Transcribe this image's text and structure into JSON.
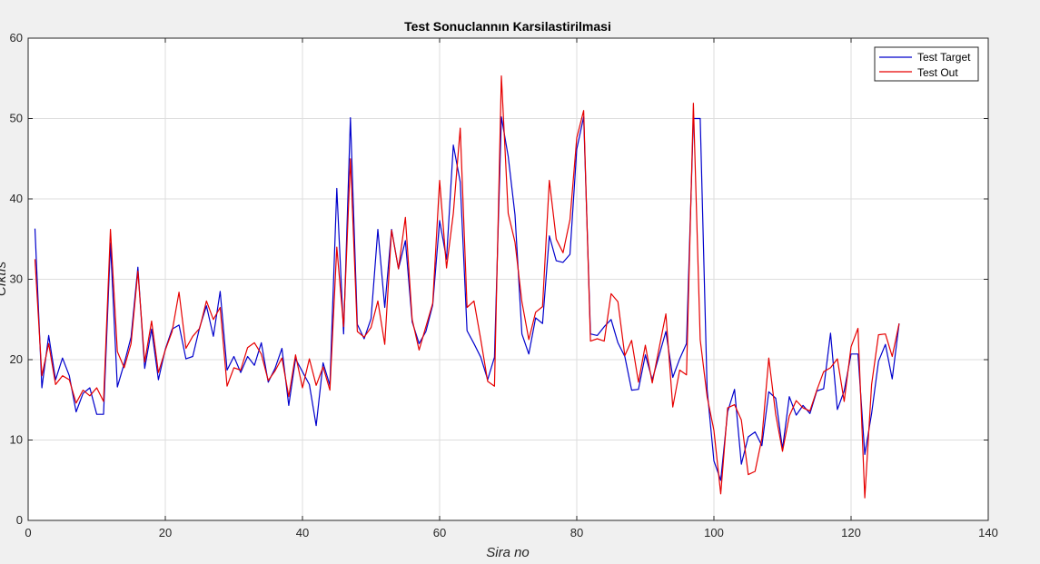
{
  "chart_data": {
    "type": "line",
    "title": "Test Sonuclannın Karsilastirilmasi",
    "xlabel": "Sira no",
    "ylabel": "Cıktıs",
    "xlim": [
      0,
      140
    ],
    "ylim": [
      0,
      60
    ],
    "xticks": [
      0,
      20,
      40,
      60,
      80,
      100,
      120,
      140
    ],
    "yticks": [
      0,
      10,
      20,
      30,
      40,
      50,
      60
    ],
    "grid": true,
    "legend_position": "top-right",
    "series": [
      {
        "name": "Test Target",
        "color": "#0000cc",
        "x": [
          1,
          2,
          3,
          4,
          5,
          6,
          7,
          8,
          9,
          10,
          11,
          12,
          13,
          14,
          15,
          16,
          17,
          18,
          19,
          20,
          21,
          22,
          23,
          24,
          25,
          26,
          27,
          28,
          29,
          30,
          31,
          32,
          33,
          34,
          35,
          36,
          37,
          38,
          39,
          40,
          41,
          42,
          43,
          44,
          45,
          46,
          47,
          48,
          49,
          50,
          51,
          52,
          53,
          54,
          55,
          56,
          57,
          58,
          59,
          60,
          61,
          62,
          63,
          64,
          65,
          66,
          67,
          68,
          69,
          70,
          71,
          72,
          73,
          74,
          75,
          76,
          77,
          78,
          79,
          80,
          81,
          82,
          83,
          84,
          85,
          86,
          87,
          88,
          89,
          90,
          91,
          92,
          93,
          94,
          95,
          96,
          97,
          98,
          99,
          100,
          101,
          102,
          103,
          104,
          105,
          106,
          107,
          108,
          109,
          110,
          111,
          112,
          113,
          114,
          115,
          116,
          117,
          118,
          119,
          120,
          121,
          122,
          123,
          124,
          125,
          126,
          127
        ],
        "values": [
          36.3,
          16.5,
          23.0,
          17.5,
          20.2,
          18.0,
          13.5,
          15.8,
          16.5,
          13.2,
          13.2,
          34.5,
          16.6,
          19.5,
          22.8,
          31.5,
          18.9,
          23.8,
          17.5,
          21.3,
          23.8,
          24.3,
          20.1,
          20.4,
          24.0,
          26.7,
          22.9,
          28.5,
          18.7,
          20.4,
          18.4,
          20.4,
          19.3,
          22.1,
          17.2,
          18.9,
          21.4,
          14.3,
          20.1,
          18.5,
          16.9,
          11.8,
          19.6,
          16.8,
          41.3,
          23.2,
          50.1,
          24.4,
          22.6,
          25.1,
          36.2,
          26.5,
          36.2,
          31.3,
          34.8,
          24.7,
          22.0,
          23.5,
          26.8,
          37.3,
          32.5,
          46.7,
          42.1,
          23.6,
          22.0,
          20.3,
          17.5,
          20.3,
          50.2,
          45.3,
          38.0,
          23.2,
          20.7,
          25.2,
          24.5,
          35.4,
          32.3,
          32.1,
          33.1,
          46.2,
          50.2,
          23.2,
          23.0,
          24.1,
          25.0,
          22.1,
          20.4,
          16.2,
          16.3,
          20.6,
          17.5,
          20.5,
          23.5,
          17.8,
          20.1,
          22.0,
          50.0,
          50.0,
          16.3,
          7.4,
          5.0,
          13.5,
          16.3,
          7.0,
          10.4,
          11.0,
          9.3,
          16.0,
          15.2,
          8.9,
          15.4,
          13.1,
          14.3,
          13.3,
          16.1,
          16.4,
          23.3,
          13.8,
          16.1,
          20.7,
          20.7,
          8.2,
          13.3,
          19.8,
          21.9,
          17.6,
          24.5
        ]
      },
      {
        "name": "Test Out",
        "color": "#e60000",
        "x": [
          1,
          2,
          3,
          4,
          5,
          6,
          7,
          8,
          9,
          10,
          11,
          12,
          13,
          14,
          15,
          16,
          17,
          18,
          19,
          20,
          21,
          22,
          23,
          24,
          25,
          26,
          27,
          28,
          29,
          30,
          31,
          32,
          33,
          34,
          35,
          36,
          37,
          38,
          39,
          40,
          41,
          42,
          43,
          44,
          45,
          46,
          47,
          48,
          49,
          50,
          51,
          52,
          53,
          54,
          55,
          56,
          57,
          58,
          59,
          60,
          61,
          62,
          63,
          64,
          65,
          66,
          67,
          68,
          69,
          70,
          71,
          72,
          73,
          74,
          75,
          76,
          77,
          78,
          79,
          80,
          81,
          82,
          83,
          84,
          85,
          86,
          87,
          88,
          89,
          90,
          91,
          92,
          93,
          94,
          95,
          96,
          97,
          98,
          99,
          100,
          101,
          102,
          103,
          104,
          105,
          106,
          107,
          108,
          109,
          110,
          111,
          112,
          113,
          114,
          115,
          116,
          117,
          118,
          119,
          120,
          121,
          122,
          123,
          124,
          125,
          126,
          127
        ],
        "values": [
          32.5,
          18.0,
          22.0,
          16.9,
          18.0,
          17.5,
          14.6,
          16.2,
          15.5,
          16.5,
          14.8,
          36.2,
          21.0,
          19.0,
          22.0,
          31.0,
          19.7,
          24.8,
          18.4,
          21.2,
          23.5,
          28.4,
          21.4,
          22.9,
          23.9,
          27.3,
          25.0,
          26.5,
          16.7,
          19.0,
          18.7,
          21.5,
          22.1,
          20.7,
          17.4,
          18.6,
          20.2,
          15.4,
          20.6,
          16.5,
          20.1,
          16.8,
          19.1,
          16.2,
          34.0,
          24.1,
          45.0,
          23.5,
          22.8,
          24.0,
          27.3,
          21.9,
          36.1,
          31.3,
          37.7,
          25.0,
          21.2,
          24.1,
          27.0,
          42.3,
          31.4,
          38.2,
          48.8,
          26.5,
          27.3,
          22.5,
          17.3,
          16.7,
          55.3,
          38.2,
          34.6,
          27.2,
          22.5,
          25.9,
          26.6,
          42.3,
          35.0,
          33.3,
          37.4,
          47.6,
          51.0,
          22.3,
          22.6,
          22.3,
          28.2,
          27.2,
          20.5,
          22.4,
          17.2,
          21.8,
          17.1,
          21.4,
          25.7,
          14.1,
          18.7,
          18.1,
          51.9,
          22.5,
          15.4,
          11.2,
          3.3,
          14.0,
          14.4,
          12.5,
          5.7,
          6.1,
          10.2,
          20.2,
          13.2,
          8.6,
          13.0,
          14.9,
          14.0,
          13.6,
          16.2,
          18.5,
          19.0,
          20.1,
          14.8,
          21.6,
          23.9,
          2.8,
          16.9,
          23.1,
          23.2,
          20.4,
          24.5
        ]
      }
    ]
  }
}
